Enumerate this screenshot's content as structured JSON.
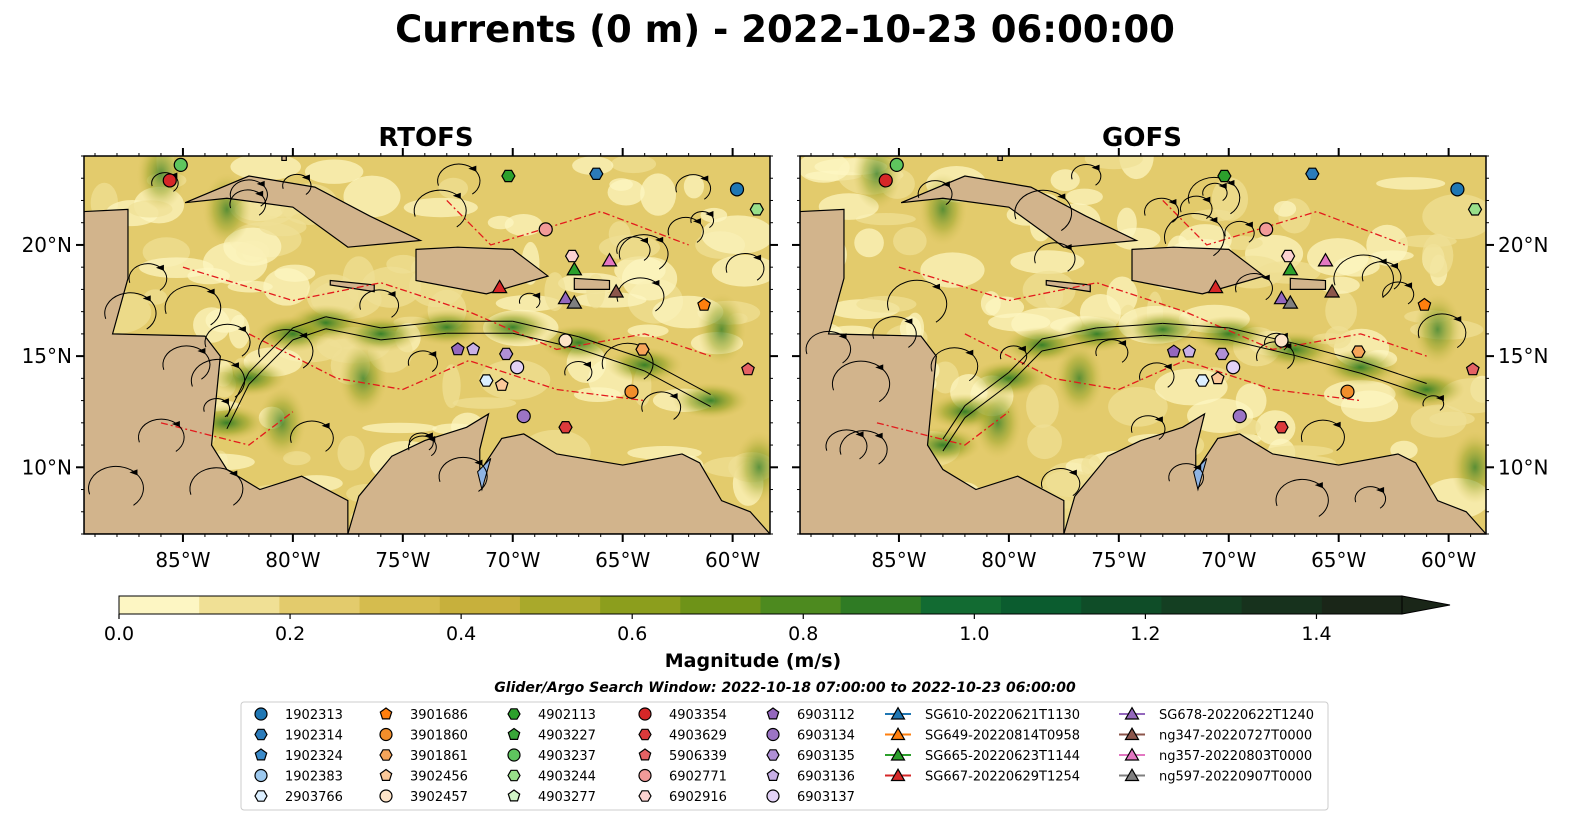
{
  "title": "Currents (0 m) - 2022-10-23 06:00:00",
  "colors": {
    "land": "#d2b48c",
    "lake": "#8fb4e3",
    "contour_red": "#e31a1c",
    "stream": "#000000",
    "colormap": [
      "#fdf6c3",
      "#f0e095",
      "#e3cb6c",
      "#d5bc4e",
      "#c7b03c",
      "#a9a92b",
      "#8c9e1d",
      "#6e9318",
      "#4d8a1f",
      "#2f7b24",
      "#126b32",
      "#0b5c2f",
      "#0f4d28",
      "#143f22",
      "#17321d",
      "#1a2618"
    ]
  },
  "chart_data": [
    {
      "type": "heatmap",
      "title": "RTOFS",
      "description_variable": "surface current magnitude with streamlines",
      "xticks": [
        "85°W",
        "80°W",
        "75°W",
        "70°W",
        "65°W",
        "60°W"
      ],
      "xtick_values": [
        -85,
        -80,
        -75,
        -70,
        -65,
        -60
      ],
      "yticks": [
        "20°N",
        "15°N",
        "10°N"
      ],
      "ytick_values": [
        20,
        15,
        10
      ],
      "xlim": [
        -89.5,
        -58.3
      ],
      "ylim": [
        7,
        24
      ],
      "yaxis_side": "left"
    },
    {
      "type": "heatmap",
      "title": "GOFS",
      "description_variable": "surface current magnitude with streamlines",
      "xticks": [
        "85°W",
        "80°W",
        "75°W",
        "70°W",
        "65°W",
        "60°W"
      ],
      "xtick_values": [
        -85,
        -80,
        -75,
        -70,
        -65,
        -60
      ],
      "yticks": [
        "20°N",
        "15°N",
        "10°N"
      ],
      "ytick_values": [
        20,
        15,
        10
      ],
      "xlim": [
        -89.5,
        -58.3
      ],
      "ylim": [
        7,
        24
      ],
      "yaxis_side": "right"
    }
  ],
  "colorbar": {
    "label": "Magnitude (m/s)",
    "min": 0.0,
    "max": 1.5,
    "extend": "max",
    "ticks": [
      "0.0",
      "0.2",
      "0.4",
      "0.6",
      "0.8",
      "1.0",
      "1.2",
      "1.4"
    ],
    "tick_values": [
      0,
      0.2,
      0.4,
      0.6,
      0.8,
      1.0,
      1.2,
      1.4
    ]
  },
  "legend": {
    "title": "Glider/Argo Search Window: 2022-10-18 07:00:00 to 2022-10-23 06:00:00",
    "columns": [
      [
        {
          "label": "1902313",
          "marker": "circle",
          "color": "#1f77b4"
        },
        {
          "label": "1902314",
          "marker": "hexagon",
          "color": "#2b7bba"
        },
        {
          "label": "1902324",
          "marker": "pentagon",
          "color": "#3a8ac9"
        },
        {
          "label": "1902383",
          "marker": "circle",
          "color": "#9cc8ee"
        },
        {
          "label": "2903766",
          "marker": "hexagon",
          "color": "#dcefff"
        }
      ],
      [
        {
          "label": "3901686",
          "marker": "pentagon",
          "color": "#ff7f0e"
        },
        {
          "label": "3901860",
          "marker": "circle",
          "color": "#f28e2b"
        },
        {
          "label": "3901861",
          "marker": "hexagon",
          "color": "#f6a55a"
        },
        {
          "label": "3902456",
          "marker": "pentagon",
          "color": "#fbc99a"
        },
        {
          "label": "3902457",
          "marker": "circle",
          "color": "#fde3c8"
        }
      ],
      [
        {
          "label": "4902113",
          "marker": "hexagon",
          "color": "#2ca02c"
        },
        {
          "label": "4903227",
          "marker": "pentagon",
          "color": "#39a639"
        },
        {
          "label": "4903237",
          "marker": "circle",
          "color": "#5ec55e"
        },
        {
          "label": "4903244",
          "marker": "hexagon",
          "color": "#98df8a"
        },
        {
          "label": "4903277",
          "marker": "pentagon",
          "color": "#d2f5c8"
        }
      ],
      [
        {
          "label": "4903354",
          "marker": "circle",
          "color": "#d62728"
        },
        {
          "label": "4903629",
          "marker": "hexagon",
          "color": "#dc3a3b"
        },
        {
          "label": "5906339",
          "marker": "pentagon",
          "color": "#e56264"
        },
        {
          "label": "6902771",
          "marker": "circle",
          "color": "#f29a98"
        },
        {
          "label": "6902916",
          "marker": "hexagon",
          "color": "#fbd2d0"
        }
      ],
      [
        {
          "label": "6903112",
          "marker": "pentagon",
          "color": "#9467bd"
        },
        {
          "label": "6903134",
          "marker": "circle",
          "color": "#9b74c4"
        },
        {
          "label": "6903135",
          "marker": "hexagon",
          "color": "#b090d6"
        },
        {
          "label": "6903136",
          "marker": "pentagon",
          "color": "#c9b0e6"
        },
        {
          "label": "6903137",
          "marker": "circle",
          "color": "#e2d1f5"
        }
      ],
      [
        {
          "label": "SG610-20220621T1130",
          "marker": "triangle",
          "color": "#1f77b4"
        },
        {
          "label": "SG649-20220814T0958",
          "marker": "triangle",
          "color": "#ff7f0e"
        },
        {
          "label": "SG665-20220623T1144",
          "marker": "triangle",
          "color": "#2ca02c"
        },
        {
          "label": "SG667-20220629T1254",
          "marker": "triangle",
          "color": "#d62728"
        }
      ],
      [
        {
          "label": "SG678-20220622T1240",
          "marker": "triangle",
          "color": "#9467bd"
        },
        {
          "label": "ng347-20220727T0000",
          "marker": "triangle",
          "color": "#8c564b"
        },
        {
          "label": "ng357-20220803T0000",
          "marker": "triangle",
          "color": "#e377c2"
        },
        {
          "label": "ng597-20220907T0000",
          "marker": "triangle",
          "color": "#7f7f7f"
        }
      ]
    ]
  },
  "platforms": [
    {
      "id": "4903354",
      "lon": -85.6,
      "lat": 22.9,
      "gofs_lon": -85.6,
      "gofs_lat": 22.9,
      "marker": "circle",
      "color": "#d62728"
    },
    {
      "id": "4903237",
      "lon": -85.1,
      "lat": 23.6,
      "gofs_lon": -85.1,
      "gofs_lat": 23.6,
      "marker": "circle",
      "color": "#5ec55e"
    },
    {
      "id": "4902113",
      "lon": -70.2,
      "lat": 23.1,
      "gofs_lon": -70.2,
      "gofs_lat": 23.1,
      "marker": "hexagon",
      "color": "#2ca02c"
    },
    {
      "id": "1902314",
      "lon": -66.2,
      "lat": 23.2,
      "gofs_lon": -66.2,
      "gofs_lat": 23.2,
      "marker": "hexagon",
      "color": "#2b7bba"
    },
    {
      "id": "1902313",
      "lon": -59.8,
      "lat": 22.5,
      "gofs_lon": -59.6,
      "gofs_lat": 22.5,
      "marker": "circle",
      "color": "#1f77b4"
    },
    {
      "id": "4903244",
      "lon": -58.9,
      "lat": 21.6,
      "gofs_lon": -58.8,
      "gofs_lat": 21.6,
      "marker": "hexagon",
      "color": "#98df8a"
    },
    {
      "id": "6902771",
      "lon": -68.5,
      "lat": 20.7,
      "gofs_lon": -68.3,
      "gofs_lat": 20.7,
      "marker": "circle",
      "color": "#f29a98"
    },
    {
      "id": "6902916",
      "lon": -67.3,
      "lat": 19.5,
      "gofs_lon": -67.3,
      "gofs_lat": 19.5,
      "marker": "hexagon",
      "color": "#fbd2d0"
    },
    {
      "id": "SG665-20220623T1144",
      "lon": -67.2,
      "lat": 18.9,
      "gofs_lon": -67.2,
      "gofs_lat": 18.9,
      "marker": "triangle",
      "color": "#2ca02c"
    },
    {
      "id": "ng357-20220803T0000",
      "lon": -65.6,
      "lat": 19.3,
      "gofs_lon": -65.6,
      "gofs_lat": 19.3,
      "marker": "triangle",
      "color": "#e377c2"
    },
    {
      "id": "SG667-20220629T1254",
      "lon": -70.6,
      "lat": 18.1,
      "gofs_lon": -70.6,
      "gofs_lat": 18.1,
      "marker": "triangle",
      "color": "#d62728"
    },
    {
      "id": "SG678-20220622T1240",
      "lon": -67.6,
      "lat": 17.6,
      "gofs_lon": -67.6,
      "gofs_lat": 17.6,
      "marker": "triangle",
      "color": "#9467bd"
    },
    {
      "id": "ng597-20220907T0000",
      "lon": -67.2,
      "lat": 17.4,
      "gofs_lon": -67.2,
      "gofs_lat": 17.4,
      "marker": "triangle",
      "color": "#7f7f7f"
    },
    {
      "id": "ng347-20220727T0000",
      "lon": -65.3,
      "lat": 17.9,
      "gofs_lon": -65.3,
      "gofs_lat": 17.9,
      "marker": "triangle",
      "color": "#8c564b"
    },
    {
      "id": "3901686",
      "lon": -61.3,
      "lat": 17.3,
      "gofs_lon": -61.1,
      "gofs_lat": 17.3,
      "marker": "pentagon",
      "color": "#ff7f0e"
    },
    {
      "id": "3902457",
      "lon": -67.6,
      "lat": 15.7,
      "gofs_lon": -67.6,
      "gofs_lat": 15.7,
      "marker": "circle",
      "color": "#fde3c8"
    },
    {
      "id": "3901861",
      "lon": -64.1,
      "lat": 15.3,
      "gofs_lon": -64.1,
      "gofs_lat": 15.2,
      "marker": "hexagon",
      "color": "#f6a55a"
    },
    {
      "id": "5906339",
      "lon": -59.3,
      "lat": 14.4,
      "gofs_lon": -58.9,
      "gofs_lat": 14.4,
      "marker": "pentagon",
      "color": "#e56264"
    },
    {
      "id": "6903112",
      "lon": -72.5,
      "lat": 15.3,
      "gofs_lon": -72.5,
      "gofs_lat": 15.2,
      "marker": "pentagon",
      "color": "#9467bd"
    },
    {
      "id": "6903136",
      "lon": -71.8,
      "lat": 15.3,
      "gofs_lon": -71.8,
      "gofs_lat": 15.2,
      "marker": "pentagon",
      "color": "#c9b0e6"
    },
    {
      "id": "6903135",
      "lon": -70.3,
      "lat": 15.1,
      "gofs_lon": -70.3,
      "gofs_lat": 15.1,
      "marker": "hexagon",
      "color": "#b090d6"
    },
    {
      "id": "6903137",
      "lon": -69.8,
      "lat": 14.5,
      "gofs_lon": -69.8,
      "gofs_lat": 14.5,
      "marker": "circle",
      "color": "#e2d1f5"
    },
    {
      "id": "3902456",
      "lon": -70.5,
      "lat": 13.7,
      "gofs_lon": -70.5,
      "gofs_lat": 14.0,
      "marker": "pentagon",
      "color": "#fbc99a"
    },
    {
      "id": "2903766",
      "lon": -71.2,
      "lat": 13.9,
      "gofs_lon": -71.2,
      "gofs_lat": 13.9,
      "marker": "hexagon",
      "color": "#dcefff"
    },
    {
      "id": "3901860",
      "lon": -64.6,
      "lat": 13.4,
      "gofs_lon": -64.6,
      "gofs_lat": 13.4,
      "marker": "circle",
      "color": "#f28e2b"
    },
    {
      "id": "6903134",
      "lon": -69.5,
      "lat": 12.3,
      "gofs_lon": -69.5,
      "gofs_lat": 12.3,
      "marker": "circle",
      "color": "#9b74c4"
    },
    {
      "id": "4903629",
      "lon": -67.6,
      "lat": 11.8,
      "gofs_lon": -67.6,
      "gofs_lat": 11.8,
      "marker": "hexagon",
      "color": "#dc3a3b"
    }
  ]
}
